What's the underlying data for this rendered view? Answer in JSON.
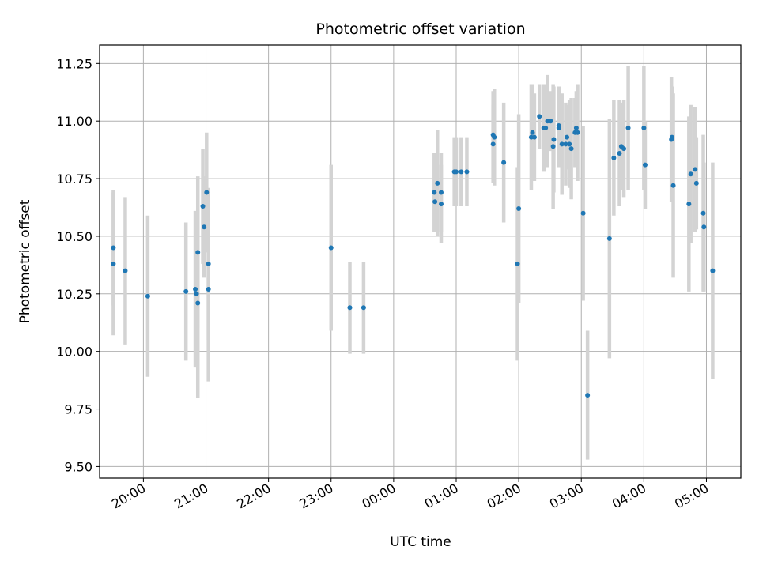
{
  "chart_data": {
    "type": "scatter",
    "title": "Photometric offset variation",
    "xlabel": "UTC time",
    "ylabel": "Photometric offset",
    "grid": true,
    "colors": {
      "points": "#1f77b4",
      "error_bars": "#d3d3d3"
    },
    "x_tick_labels": [
      "20:00",
      "21:00",
      "22:00",
      "23:00",
      "00:00",
      "01:00",
      "02:00",
      "03:00",
      "04:00",
      "05:00"
    ],
    "x_tick_hours": [
      20,
      21,
      22,
      23,
      24,
      25,
      26,
      27,
      28,
      29
    ],
    "xlim_hours": [
      19.3,
      29.55
    ],
    "y_ticks": [
      "9.50",
      "9.75",
      "10.00",
      "10.25",
      "10.50",
      "10.75",
      "11.00",
      "11.25"
    ],
    "ylim": [
      9.45,
      11.33
    ],
    "points": [
      {
        "x": 19.52,
        "y": 10.45,
        "err": 0.25
      },
      {
        "x": 19.52,
        "y": 10.38,
        "err": 0.31
      },
      {
        "x": 19.71,
        "y": 10.35,
        "err": 0.32
      },
      {
        "x": 20.07,
        "y": 10.24,
        "err": 0.35
      },
      {
        "x": 20.68,
        "y": 10.26,
        "err": 0.3
      },
      {
        "x": 20.83,
        "y": 10.27,
        "err": 0.34
      },
      {
        "x": 20.85,
        "y": 10.25,
        "err": 0.31
      },
      {
        "x": 20.87,
        "y": 10.43,
        "err": 0.33
      },
      {
        "x": 20.87,
        "y": 10.21,
        "err": 0.41
      },
      {
        "x": 20.95,
        "y": 10.63,
        "err": 0.25
      },
      {
        "x": 20.97,
        "y": 10.54,
        "err": 0.22
      },
      {
        "x": 21.01,
        "y": 10.69,
        "err": 0.26
      },
      {
        "x": 21.04,
        "y": 10.38,
        "err": 0.33
      },
      {
        "x": 21.04,
        "y": 10.27,
        "err": 0.4
      },
      {
        "x": 23.0,
        "y": 10.45,
        "err": 0.36
      },
      {
        "x": 23.3,
        "y": 10.19,
        "err": 0.2
      },
      {
        "x": 23.52,
        "y": 10.19,
        "err": 0.2
      },
      {
        "x": 24.65,
        "y": 10.69,
        "err": 0.17
      },
      {
        "x": 24.66,
        "y": 10.65,
        "err": 0.13
      },
      {
        "x": 24.7,
        "y": 10.73,
        "err": 0.23
      },
      {
        "x": 24.76,
        "y": 10.69,
        "err": 0.17
      },
      {
        "x": 24.76,
        "y": 10.64,
        "err": 0.17
      },
      {
        "x": 24.97,
        "y": 10.78,
        "err": 0.15
      },
      {
        "x": 25.0,
        "y": 10.78,
        "err": 0.15
      },
      {
        "x": 25.08,
        "y": 10.78,
        "err": 0.15
      },
      {
        "x": 25.17,
        "y": 10.78,
        "err": 0.15
      },
      {
        "x": 25.59,
        "y": 10.94,
        "err": 0.19
      },
      {
        "x": 25.59,
        "y": 10.9,
        "err": 0.17
      },
      {
        "x": 25.61,
        "y": 10.93,
        "err": 0.21
      },
      {
        "x": 25.76,
        "y": 10.82,
        "err": 0.26
      },
      {
        "x": 25.98,
        "y": 10.38,
        "err": 0.42
      },
      {
        "x": 26.0,
        "y": 10.62,
        "err": 0.41
      },
      {
        "x": 26.2,
        "y": 10.93,
        "err": 0.23
      },
      {
        "x": 26.22,
        "y": 10.95,
        "err": 0.21
      },
      {
        "x": 26.25,
        "y": 10.93,
        "err": 0.19
      },
      {
        "x": 26.33,
        "y": 11.02,
        "err": 0.14
      },
      {
        "x": 26.4,
        "y": 10.97,
        "err": 0.19
      },
      {
        "x": 26.43,
        "y": 10.97,
        "err": 0.17
      },
      {
        "x": 26.46,
        "y": 11.0,
        "err": 0.2
      },
      {
        "x": 26.51,
        "y": 11.0,
        "err": 0.13
      },
      {
        "x": 26.55,
        "y": 10.89,
        "err": 0.27
      },
      {
        "x": 26.56,
        "y": 10.92,
        "err": 0.23
      },
      {
        "x": 26.64,
        "y": 10.97,
        "err": 0.17
      },
      {
        "x": 26.64,
        "y": 10.98,
        "err": 0.17
      },
      {
        "x": 26.69,
        "y": 10.9,
        "err": 0.22
      },
      {
        "x": 26.75,
        "y": 10.9,
        "err": 0.18
      },
      {
        "x": 26.77,
        "y": 10.93,
        "err": 0.14
      },
      {
        "x": 26.81,
        "y": 10.9,
        "err": 0.19
      },
      {
        "x": 26.84,
        "y": 10.88,
        "err": 0.22
      },
      {
        "x": 26.9,
        "y": 10.95,
        "err": 0.15
      },
      {
        "x": 26.92,
        "y": 10.97,
        "err": 0.16
      },
      {
        "x": 26.94,
        "y": 10.95,
        "err": 0.21
      },
      {
        "x": 27.03,
        "y": 10.6,
        "err": 0.38
      },
      {
        "x": 27.1,
        "y": 9.81,
        "err": 0.28
      },
      {
        "x": 27.45,
        "y": 10.49,
        "err": 0.52
      },
      {
        "x": 27.52,
        "y": 10.84,
        "err": 0.25
      },
      {
        "x": 27.61,
        "y": 10.86,
        "err": 0.23
      },
      {
        "x": 27.64,
        "y": 10.89,
        "err": 0.19
      },
      {
        "x": 27.68,
        "y": 10.88,
        "err": 0.21
      },
      {
        "x": 27.75,
        "y": 10.97,
        "err": 0.27
      },
      {
        "x": 28.0,
        "y": 10.97,
        "err": 0.27
      },
      {
        "x": 28.02,
        "y": 10.81,
        "err": 0.19
      },
      {
        "x": 28.44,
        "y": 10.92,
        "err": 0.27
      },
      {
        "x": 28.45,
        "y": 10.93,
        "err": 0.22
      },
      {
        "x": 28.47,
        "y": 10.72,
        "err": 0.4
      },
      {
        "x": 28.72,
        "y": 10.64,
        "err": 0.38
      },
      {
        "x": 28.75,
        "y": 10.77,
        "err": 0.3
      },
      {
        "x": 28.82,
        "y": 10.79,
        "err": 0.27
      },
      {
        "x": 28.84,
        "y": 10.73,
        "err": 0.2
      },
      {
        "x": 28.95,
        "y": 10.6,
        "err": 0.34
      },
      {
        "x": 28.96,
        "y": 10.54,
        "err": 0.28
      },
      {
        "x": 29.1,
        "y": 10.35,
        "err": 0.47
      }
    ]
  }
}
